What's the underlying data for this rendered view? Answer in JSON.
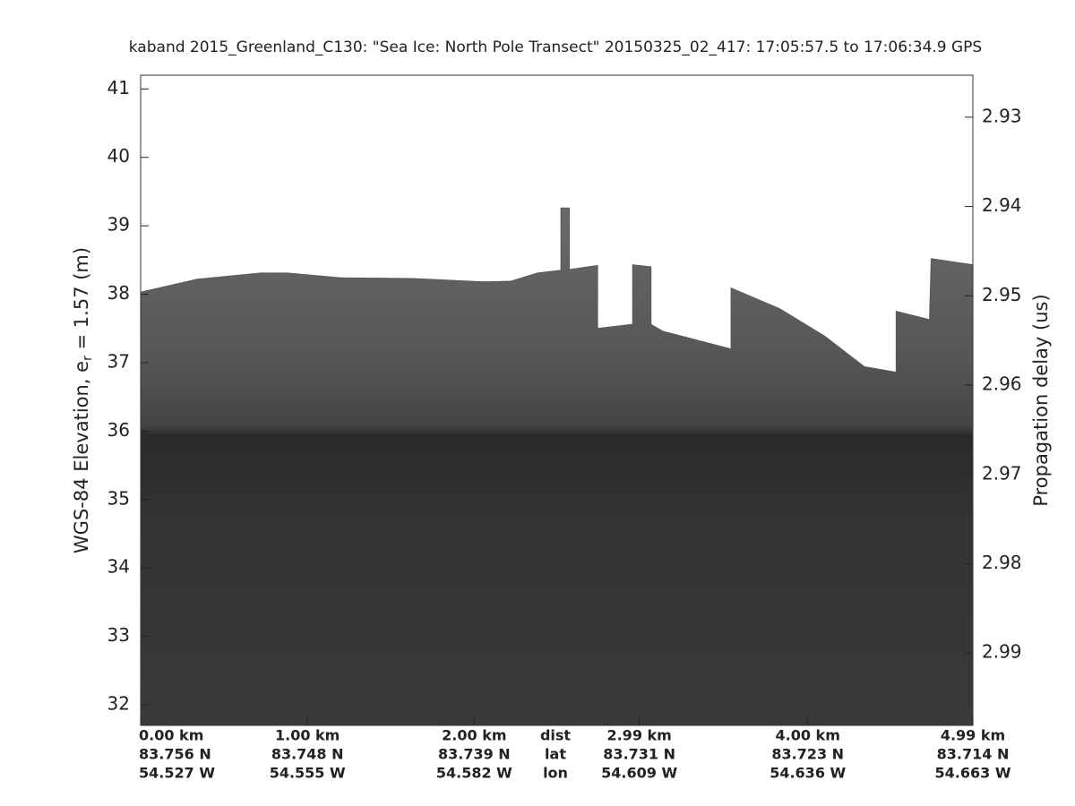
{
  "chart_data": {
    "type": "echogram",
    "title": "kaband 2015_Greenland_C130: \"Sea Ice: North Pole Transect\"  20150325_02_417: 17:05:57.5 to 17:06:34.9 GPS",
    "ylabel": {
      "text": "WGS-84 Elevation, e",
      "subscript": "r",
      "after": " = 1.57 (m)"
    },
    "y2label": "Propagation delay (us)",
    "xlim": [
      0,
      4.99
    ],
    "xticks": [
      {
        "value": 0,
        "label": "0.00 km"
      },
      {
        "value": 1,
        "label": "1.00 km"
      },
      {
        "value": 2,
        "label": "2.00 km"
      },
      {
        "value": 2.99,
        "label": "2.99 km"
      },
      {
        "value": 4,
        "label": "4.00 km"
      },
      {
        "value": 4.99,
        "label": "4.99 km"
      }
    ],
    "lat_labels": [
      "83.756 N",
      "83.748 N",
      "83.739 N",
      "83.731 N",
      "83.723 N",
      "83.714 N"
    ],
    "lon_labels": [
      "54.527 W",
      "54.555 W",
      "54.582 W",
      "54.609 W",
      "54.636 W",
      "54.663 W"
    ],
    "row_labels": [
      "dist",
      "lat",
      "lon"
    ],
    "ylim": [
      31.7,
      41.2
    ],
    "yticks": [
      32,
      33,
      34,
      35,
      36,
      37,
      38,
      39,
      40,
      41
    ],
    "y2lim": [
      2.9981,
      2.9253
    ],
    "y2ticks": [
      2.93,
      2.94,
      2.95,
      2.96,
      2.97,
      2.98,
      2.99
    ],
    "series": [
      {
        "name": "surface",
        "color": "#5a5a5a",
        "x": [
          0,
          0.34,
          0.72,
          0.88,
          1.2,
          1.63,
          2.06,
          2.22,
          2.38,
          2.52,
          2.52,
          2.57,
          2.57,
          2.74,
          2.74,
          2.95,
          2.95,
          3.06,
          3.06,
          3.13,
          3.54,
          3.54,
          3.83,
          4.1,
          4.34,
          4.53,
          4.53,
          4.73,
          4.74,
          4.99
        ],
        "values": [
          38.03,
          38.22,
          38.31,
          38.31,
          38.24,
          38.23,
          38.18,
          38.19,
          38.31,
          38.35,
          39.26,
          39.26,
          38.36,
          38.42,
          37.5,
          37.56,
          38.43,
          38.4,
          37.56,
          37.46,
          37.2,
          38.09,
          37.79,
          37.39,
          36.94,
          36.86,
          37.75,
          37.63,
          38.52,
          38.43
        ]
      }
    ]
  }
}
